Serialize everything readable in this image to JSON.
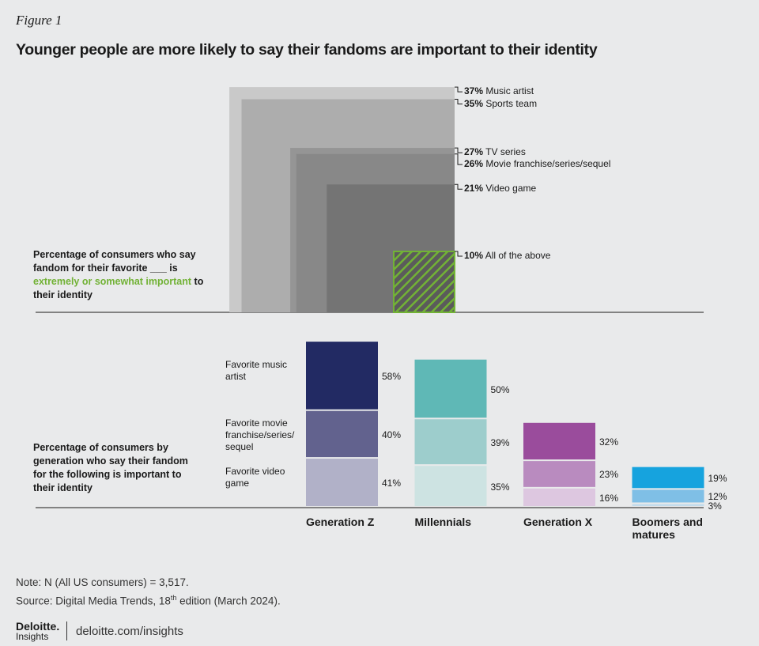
{
  "figure_label": "Figure 1",
  "title": "Younger people are more likely to say their fandoms are important to their identity",
  "chart_data": [
    {
      "type": "nested-square",
      "description": {
        "before": "Percentage of consumers who say fandom for their favorite ___ is ",
        "highlight": "extremely or somewhat important",
        "after": " to their identity",
        "highlight_color": "#72b236"
      },
      "categories": [
        "Music artist",
        "Sports team",
        "TV series",
        "Movie franchise/series/sequel",
        "Video game",
        "All of the above"
      ],
      "values": [
        37,
        35,
        27,
        26,
        21,
        10
      ],
      "value_labels": [
        "37%",
        "35%",
        "27%",
        "26%",
        "21%",
        "10%"
      ],
      "colors": [
        "#c9c9c9",
        "#adadad",
        "#959595",
        "#888888",
        "#747474",
        "#72b236"
      ],
      "hatched": [
        false,
        false,
        false,
        false,
        false,
        true
      ]
    },
    {
      "type": "stacked-bar",
      "description": "Percentage of consumers by generation who say their fandom for the following is important to their identity",
      "categories": [
        "Generation Z",
        "Millennials",
        "Generation X",
        "Boomers and matures"
      ],
      "series": [
        {
          "name": "Favorite music artist",
          "colors": [
            "#222a63",
            "#5fb8b6",
            "#9a4c9c",
            "#16a3de"
          ],
          "values": [
            58,
            50,
            32,
            19
          ],
          "value_labels": [
            "58%",
            "50%",
            "32%",
            "19%"
          ]
        },
        {
          "name": "Favorite movie franchise/series/ sequel",
          "colors": [
            "#62628e",
            "#9dcdcc",
            "#b98bbf",
            "#7fbfe6"
          ],
          "values": [
            40,
            39,
            23,
            12
          ],
          "value_labels": [
            "40%",
            "39%",
            "23%",
            "12%"
          ]
        },
        {
          "name": "Favorite video game",
          "colors": [
            "#b1b1c8",
            "#cde3e2",
            "#ddc7e0",
            "#c3dcec"
          ],
          "values": [
            41,
            35,
            16,
            3
          ],
          "value_labels": [
            "41%",
            "35%",
            "16%",
            "3%"
          ]
        }
      ]
    }
  ],
  "note": "Note: N (All US consumers) = 3,517.",
  "source": {
    "before": "Source: Digital Media Trends, 18",
    "superscript": "th",
    "after": " edition (March 2024)."
  },
  "footer": {
    "brand": "Deloitte.",
    "sub": "Insights",
    "url": "deloitte.com/insights"
  }
}
